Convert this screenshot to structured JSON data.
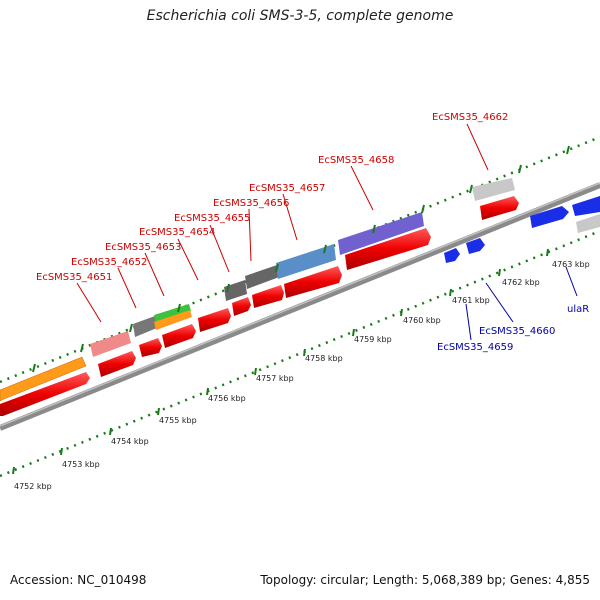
{
  "title": "Escherichia coli SMS-3-5, complete genome",
  "footer": {
    "accession": "Accession: NC_010498",
    "summary": "Topology: circular; Length: 5,068,389 bp; Genes: 4,855"
  },
  "colors": {
    "red_label": "#cc0000",
    "blue_label": "#0000aa",
    "backbone": "#808080",
    "tick": "#1a7a1a"
  },
  "kbp_ticks": [
    "4752 kbp",
    "4753 kbp",
    "4754 kbp",
    "4755 kbp",
    "4756 kbp",
    "4757 kbp",
    "4758 kbp",
    "4759 kbp",
    "4760 kbp",
    "4761 kbp",
    "4762 kbp",
    "4763 kbp"
  ],
  "gene_labels_top": [
    "EcSMS35_4651",
    "EcSMS35_4652",
    "EcSMS35_4653",
    "EcSMS35_4654",
    "EcSMS35_4655",
    "EcSMS35_4656",
    "EcSMS35_4657",
    "EcSMS35_4658",
    "EcSMS35_4662"
  ],
  "gene_labels_bottom": [
    "EcSMS35_4659",
    "EcSMS35_4660",
    "ulaR"
  ]
}
